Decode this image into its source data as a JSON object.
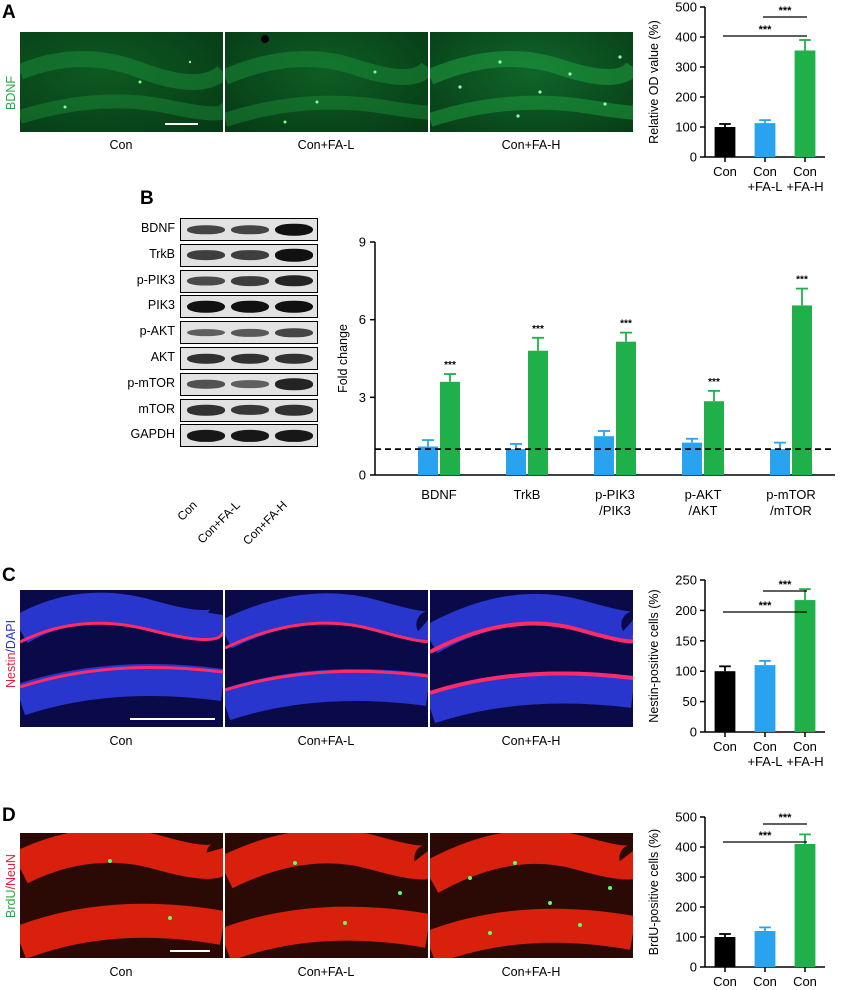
{
  "panels": {
    "A": {
      "letter": "A",
      "stain_label": "BDNF",
      "stain_color": "#22aa44",
      "image_captions": [
        "Con",
        "Con+FA-L",
        "Con+FA-H"
      ]
    },
    "B": {
      "letter": "B",
      "blot_rows": [
        "BDNF",
        "TrkB",
        "p-PIK3",
        "PIK3",
        "p-AKT",
        "AKT",
        "p-mTOR",
        "mTOR",
        "GAPDH"
      ],
      "lane_labels": [
        "Con",
        "Con+FA-L",
        "Con+FA-H"
      ]
    },
    "C": {
      "letter": "C",
      "stain_label_1": "Nestin",
      "stain_sep": "/",
      "stain_label_2": "DAPI",
      "stain_color_1": "#e0203a",
      "stain_color_2": "#2233cc",
      "image_captions": [
        "Con",
        "Con+FA-L",
        "Con+FA-H"
      ]
    },
    "D": {
      "letter": "D",
      "stain_label_1": "BrdU",
      "stain_sep": "/",
      "stain_label_2": "NeuN",
      "stain_color_1": "#22aa44",
      "stain_color_2": "#e0203a",
      "image_captions": [
        "Con",
        "Con+FA-L",
        "Con+FA-H"
      ]
    }
  },
  "colors": {
    "con": "#000000",
    "fa_l": "#29a3f0",
    "fa_h": "#1fb04a"
  },
  "chart_data": [
    {
      "id": "A",
      "type": "bar",
      "categories": [
        "Con",
        "Con\n+FA-L",
        "Con\n+FA-H"
      ],
      "values": [
        100,
        113,
        355
      ],
      "errors": [
        10,
        10,
        35
      ],
      "ylabel": "Relative OD value (%)",
      "ylim": [
        0,
        500
      ],
      "yticks": [
        0,
        100,
        200,
        300,
        400,
        500
      ],
      "significance": [
        {
          "from": 0,
          "to": 2,
          "label": "***"
        },
        {
          "from": 1,
          "to": 2,
          "label": "***"
        }
      ]
    },
    {
      "id": "B",
      "type": "bar",
      "categories": [
        "BDNF",
        "TrkB",
        "p-PIK3\n/PIK3",
        "p-AKT\n/AKT",
        "p-mTOR\n/mTOR"
      ],
      "series": [
        {
          "values": [
            1.1,
            1.0,
            1.5,
            1.25,
            1.0
          ],
          "errors": [
            0.25,
            0.2,
            0.2,
            0.15,
            0.25
          ]
        },
        {
          "values": [
            3.6,
            4.8,
            5.15,
            2.85,
            6.55
          ],
          "errors": [
            0.3,
            0.5,
            0.35,
            0.4,
            0.65
          ]
        }
      ],
      "ylabel": "Fold change",
      "ylim": [
        0,
        9
      ],
      "yticks": [
        0,
        3,
        6,
        9
      ],
      "reference_line": 1,
      "annotations": [
        "***",
        "***",
        "***",
        "***",
        "***"
      ]
    },
    {
      "id": "C",
      "type": "bar",
      "categories": [
        "Con",
        "Con\n+FA-L",
        "Con\n+FA-H"
      ],
      "values": [
        100,
        110,
        217
      ],
      "errors": [
        8,
        7,
        18
      ],
      "ylabel": "Nestin-positive cells (%)",
      "ylim": [
        0,
        250
      ],
      "yticks": [
        0,
        50,
        100,
        150,
        200,
        250
      ],
      "significance": [
        {
          "from": 0,
          "to": 2,
          "label": "***"
        },
        {
          "from": 1,
          "to": 2,
          "label": "***"
        }
      ]
    },
    {
      "id": "D",
      "type": "bar",
      "categories": [
        "Con",
        "Con\n+FA-L",
        "Con\n+FA-H"
      ],
      "values": [
        100,
        120,
        410
      ],
      "errors": [
        10,
        12,
        32
      ],
      "ylabel": "BrdU-positive cells (%)",
      "ylim": [
        0,
        500
      ],
      "yticks": [
        0,
        100,
        200,
        300,
        400,
        500
      ],
      "significance": [
        {
          "from": 0,
          "to": 2,
          "label": "***"
        },
        {
          "from": 1,
          "to": 2,
          "label": "***"
        }
      ]
    }
  ]
}
